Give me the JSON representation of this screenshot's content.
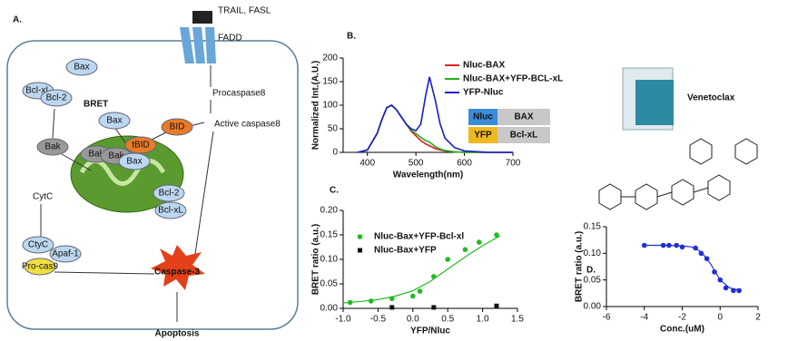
{
  "diagram": {
    "panel_labels": [
      "A.",
      "B.",
      "C.",
      "D."
    ],
    "labels": [
      "TRAIL, FASL",
      "FADD",
      "Procaspase8",
      "Active caspase8",
      "BID",
      "tBID",
      "Bcl-xL",
      "Bax",
      "Bcl-2",
      "BRET",
      "Bax",
      "Bak",
      "Bak",
      "Bak",
      "Bax",
      "Bcl-2",
      "Bcl-xL",
      "CytC",
      "CtyC",
      "Apaf-1",
      "Pro-cas9",
      "Caspase-3",
      "Apoptosis"
    ],
    "inset": [
      "Nluc",
      "BAX",
      "YFP",
      "Bcl-xL"
    ],
    "drug": "Venetoclax"
  },
  "chart_data": [
    {
      "type": "line",
      "x_label": "Wavelength(nm)",
      "y_label": "Normalized Int.(A.U.)",
      "x": [
        380,
        400,
        420,
        430,
        440,
        450,
        460,
        470,
        480,
        490,
        500,
        510,
        520,
        528,
        540,
        550,
        560,
        580,
        600,
        650,
        700
      ],
      "series": [
        {
          "name": "Nluc-BAX",
          "color": "#e02020",
          "values": [
            0,
            5,
            40,
            70,
            95,
            100,
            90,
            75,
            60,
            45,
            35,
            25,
            18,
            14,
            8,
            5,
            3,
            1,
            0,
            0,
            0
          ]
        },
        {
          "name": "Nluc-BAX+YFP-BCL-xL",
          "color": "#20b020",
          "values": [
            0,
            5,
            40,
            70,
            95,
            100,
            90,
            75,
            60,
            47,
            40,
            32,
            25,
            22,
            12,
            7,
            4,
            1,
            0,
            0,
            0
          ]
        },
        {
          "name": "YFP-Nluc",
          "color": "#1a1ad0",
          "values": [
            0,
            5,
            40,
            70,
            95,
            100,
            90,
            75,
            60,
            50,
            46,
            60,
            120,
            160,
            110,
            60,
            30,
            10,
            3,
            0,
            0
          ]
        }
      ],
      "xlim": [
        350,
        700
      ],
      "xticks": [
        400,
        500,
        600,
        700
      ],
      "ylim": [
        0,
        200
      ],
      "yticks": [
        0,
        50,
        100,
        150,
        200
      ]
    },
    {
      "type": "scatter",
      "x_label": "YFP/Nluc",
      "y_label": "BRET ratio (a.u.)",
      "series": [
        {
          "name": "Nluc-Bax+YFP-Bcl-xl",
          "color": "#22bb22",
          "x": [
            -0.9,
            -0.6,
            -0.3,
            0,
            0.1,
            0.3,
            0.5,
            0.75,
            0.95,
            1.2
          ],
          "values": [
            0.012,
            0.015,
            0.02,
            0.025,
            0.035,
            0.065,
            0.1,
            0.12,
            0.135,
            0.15
          ],
          "fit": {
            "x": [
              -1,
              -0.75,
              -0.5,
              -0.25,
              0,
              0.25,
              0.5,
              0.75,
              1,
              1.25
            ],
            "values": [
              0.011,
              0.014,
              0.018,
              0.025,
              0.036,
              0.055,
              0.08,
              0.105,
              0.128,
              0.148
            ]
          }
        },
        {
          "name": "Nluc-Bax+YFP",
          "color": "#111111",
          "x": [
            -0.3,
            0.3,
            1.2
          ],
          "values": [
            0.002,
            0.002,
            0.005
          ]
        }
      ],
      "xlim": [
        -1,
        1.5
      ],
      "xticks": [
        {
          "value": -1,
          "label": "-1.0"
        },
        -0.5,
        {
          "value": 0,
          "label": "0.0"
        },
        0.5,
        {
          "value": 1,
          "label": "1.0"
        },
        1.5
      ],
      "ylim": [
        0,
        0.2
      ],
      "yticks": [
        {
          "value": 0,
          "label": "0.00"
        },
        0.05,
        {
          "value": 0.1,
          "label": "0.10"
        },
        0.15,
        {
          "value": 0.2,
          "label": "0.20"
        }
      ]
    },
    {
      "type": "scatter",
      "x_label": "Conc.(uM)",
      "y_label": "BRET ratio (a.u.)",
      "series": [
        {
          "color": "#1f2fd6",
          "x": [
            -4,
            -3,
            -2.7,
            -2.3,
            -2,
            -1.3,
            -1,
            -0.7,
            -0.3,
            0,
            0.3,
            0.7,
            1
          ],
          "values": [
            0.115,
            0.115,
            0.115,
            0.115,
            0.112,
            0.11,
            0.1,
            0.09,
            0.065,
            0.05,
            0.035,
            0.03,
            0.03
          ],
          "fit": {
            "x": [
              -4,
              -3,
              -2,
              -1.5,
              -1,
              -0.5,
              0,
              0.5,
              1
            ],
            "values": [
              0.115,
              0.115,
              0.114,
              0.112,
              0.103,
              0.08,
              0.05,
              0.035,
              0.031
            ]
          }
        }
      ],
      "xlim": [
        -6,
        2
      ],
      "xticks": [
        -6,
        -4,
        -2,
        0,
        2
      ],
      "ylim": [
        0,
        0.15
      ],
      "yticks": [
        {
          "value": 0,
          "label": "0.00"
        },
        0.05,
        {
          "value": 0.1,
          "label": "0.10"
        },
        0.15
      ]
    }
  ]
}
